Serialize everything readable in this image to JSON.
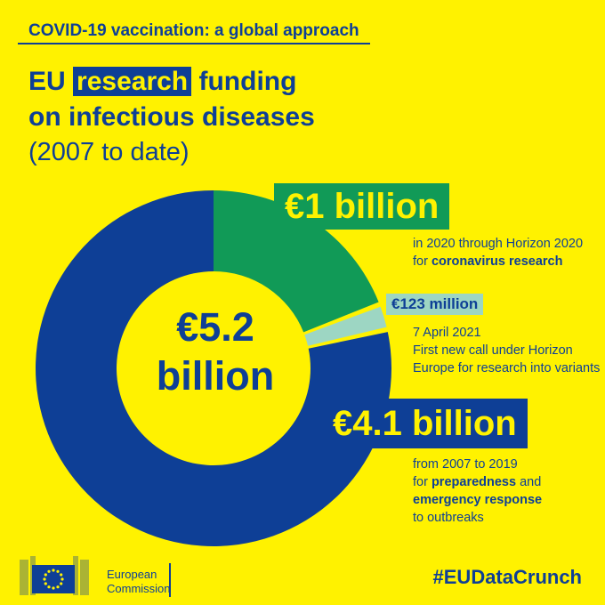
{
  "banner": "COVID-19 vaccination: a global approach",
  "title": {
    "prefix": "EU",
    "highlight": "research",
    "suffix": "funding",
    "line2": "on infectious diseases"
  },
  "subtitle": "(2007 to date)",
  "center_value": {
    "line1": "€5.2",
    "line2": "billion"
  },
  "notes": {
    "green": {
      "label": "€1 billion",
      "line1": "in 2020 through Horizon 2020",
      "line2_prefix": "for ",
      "line2_bold": "coronavirus research"
    },
    "teal": {
      "label": "€123 million",
      "line1": "7 April 2021",
      "line2": "First new call under Horizon",
      "line3": "Europe for research into variants"
    },
    "blue": {
      "label": "€4.1 billion",
      "line1": "from 2007 to 2019",
      "line2_prefix": "for ",
      "line2_bold": "preparedness",
      "line2_suffix": " and",
      "line3_bold": "emergency response",
      "line4": "to outbreaks"
    }
  },
  "footer": {
    "logo_line1": "European",
    "logo_line2": "Commission",
    "hashtag": "#EUDataCrunch"
  },
  "colors": {
    "background": "#FFF200",
    "blue": "#0E3F96",
    "green": "#119A57",
    "teal": "#9DD6C3"
  },
  "chart_data": {
    "type": "pie",
    "categories": [
      "coronavirus research (2020)",
      "research into variants (2021)",
      "preparedness and emergency response (2007-2019)"
    ],
    "values": [
      1.0,
      0.123,
      4.1
    ],
    "unit": "€ billion",
    "total": 5.2,
    "donut": true
  }
}
